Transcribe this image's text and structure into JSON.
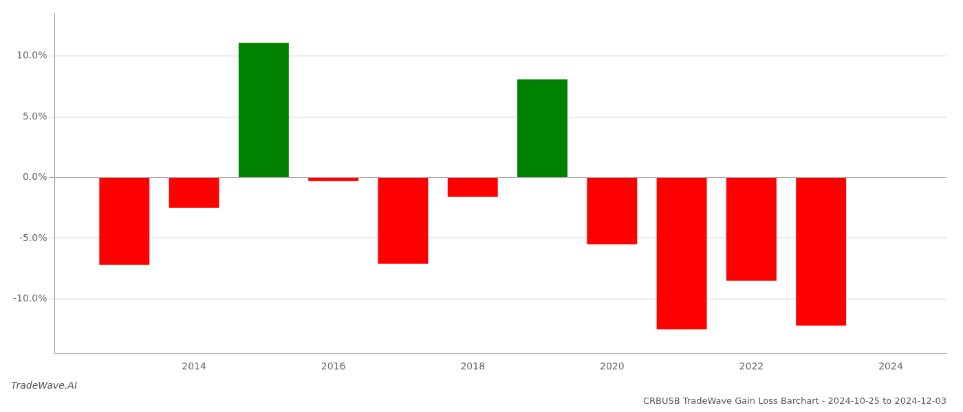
{
  "chart_data": {
    "type": "bar",
    "title": "CRBUSB TradeWave Gain Loss Barchart - 2024-10-25 to 2024-12-03",
    "annotations": [
      "TradeWave.AI"
    ],
    "x": [
      2013,
      2014,
      2015,
      2016,
      2017,
      2018,
      2019,
      2020,
      2021,
      2022,
      2023
    ],
    "values": [
      -7.2,
      -2.5,
      11.1,
      -0.3,
      -7.1,
      -1.6,
      8.1,
      -5.5,
      -12.5,
      -8.5,
      -12.2
    ],
    "colors": [
      "#ff0000",
      "#ff0000",
      "#008000",
      "#ff0000",
      "#ff0000",
      "#ff0000",
      "#008000",
      "#ff0000",
      "#ff0000",
      "#ff0000",
      "#ff0000"
    ],
    "xlim": [
      2012.0,
      2024.8
    ],
    "xticks": [
      2014,
      2016,
      2018,
      2020,
      2022,
      2024
    ],
    "ylim": [
      -14.5,
      13.5
    ],
    "yticks": [
      {
        "value": -10.0,
        "label": "-10.0%"
      },
      {
        "value": -5.0,
        "label": "-5.0%"
      },
      {
        "value": 0.0,
        "label": "0.0%"
      },
      {
        "value": 5.0,
        "label": "5.0%"
      },
      {
        "value": 10.0,
        "label": "10.0%"
      }
    ],
    "grid": "y"
  }
}
